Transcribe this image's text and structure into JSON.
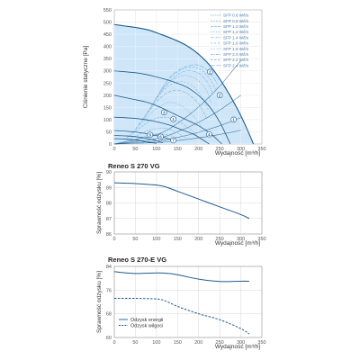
{
  "chart_data": [
    {
      "type": "line",
      "title": "",
      "xlabel": "Wydajność [m³/h]",
      "ylabel": "Ciśnienie statyczne [Pa]",
      "xlim": [
        0,
        350
      ],
      "ylim": [
        0,
        550
      ],
      "xticks": [
        0,
        50,
        100,
        150,
        200,
        250,
        300,
        350
      ],
      "yticks": [
        0,
        50,
        100,
        150,
        200,
        250,
        300,
        350,
        400,
        450,
        500,
        550
      ],
      "grid": true,
      "legend_position": "top-right",
      "max_envelope": {
        "x": [
          0,
          20,
          50,
          80,
          110,
          140,
          170,
          200,
          230,
          260,
          290,
          310,
          330
        ],
        "y": [
          490,
          485,
          478,
          468,
          450,
          430,
          405,
          368,
          315,
          240,
          150,
          80,
          0
        ]
      },
      "fan_curves": [
        {
          "marker": "2",
          "x": [
            0,
            60,
            100,
            140,
            180,
            220,
            250,
            275
          ],
          "y": [
            300,
            290,
            275,
            255,
            225,
            165,
            90,
            0
          ]
        },
        {
          "marker": "3",
          "x": [
            0,
            40,
            80,
            110,
            140,
            170,
            200,
            230,
            255
          ],
          "y": [
            200,
            185,
            170,
            150,
            125,
            100,
            75,
            40,
            0
          ]
        },
        {
          "marker": "4",
          "x": [
            0,
            50,
            90,
            130,
            160,
            190,
            225
          ],
          "y": [
            110,
            105,
            95,
            78,
            58,
            38,
            0
          ]
        },
        {
          "marker": "5",
          "x": [
            0,
            30,
            60,
            90,
            120,
            145
          ],
          "y": [
            55,
            52,
            47,
            38,
            26,
            10
          ]
        },
        {
          "marker": "6",
          "x": [
            0,
            30,
            60,
            90,
            115
          ],
          "y": [
            35,
            33,
            28,
            18,
            5
          ]
        },
        {
          "marker": "7",
          "x": [
            0,
            25,
            50,
            75,
            100
          ],
          "y": [
            22,
            20,
            16,
            9,
            3
          ]
        }
      ],
      "sfp_lines": [
        {
          "name": "SFP 0.6 W/l/s",
          "x": [
            30,
            60,
            90,
            120,
            150
          ],
          "y": [
            10,
            25,
            40,
            40,
            25
          ]
        },
        {
          "name": "SFP 0.8 W/l/s",
          "x": [
            30,
            60,
            90,
            120,
            150,
            170
          ],
          "y": [
            15,
            40,
            60,
            65,
            45,
            25
          ]
        },
        {
          "name": "SFP 1.0 W/l/s",
          "x": [
            30,
            60,
            90,
            120,
            150,
            180,
            200
          ],
          "y": [
            25,
            65,
            100,
            110,
            95,
            60,
            30
          ]
        },
        {
          "name": "SFP 1.2 W/l/s",
          "x": [
            40,
            70,
            100,
            130,
            160,
            190,
            210
          ],
          "y": [
            40,
            95,
            145,
            170,
            155,
            110,
            60
          ]
        },
        {
          "name": "SFP 1.4 W/l/s",
          "x": [
            50,
            80,
            110,
            140,
            170,
            200,
            220
          ],
          "y": [
            60,
            130,
            190,
            220,
            210,
            165,
            100
          ]
        },
        {
          "name": "SFP 1.6 W/l/s",
          "x": [
            60,
            90,
            120,
            150,
            180,
            205,
            225
          ],
          "y": [
            80,
            160,
            225,
            255,
            245,
            200,
            135
          ]
        },
        {
          "name": "SFP 1.8 W/l/s",
          "x": [
            70,
            100,
            130,
            160,
            190,
            215,
            230
          ],
          "y": [
            100,
            185,
            250,
            280,
            270,
            230,
            170
          ]
        },
        {
          "name": "SFP 2.0 W/l/s",
          "x": [
            80,
            110,
            140,
            170,
            200,
            220,
            235
          ],
          "y": [
            130,
            215,
            270,
            300,
            290,
            255,
            200
          ]
        },
        {
          "name": "SFP 2.2 W/l/s",
          "x": [
            90,
            120,
            150,
            180,
            205,
            225,
            240
          ],
          "y": [
            160,
            245,
            295,
            315,
            305,
            270,
            225
          ]
        },
        {
          "name": "SFP 2.4 W/l/s",
          "x": [
            100,
            130,
            160,
            190,
            210,
            230,
            245
          ],
          "y": [
            190,
            270,
            310,
            325,
            315,
            285,
            245
          ]
        }
      ],
      "system_curves": [
        {
          "x": [
            0,
            100,
            150,
            200,
            250,
            300
          ],
          "y": [
            0,
            38,
            85,
            152,
            238,
            342
          ]
        },
        {
          "x": [
            0,
            100,
            150,
            200,
            250,
            300
          ],
          "y": [
            0,
            22,
            50,
            89,
            139,
            200
          ]
        },
        {
          "x": [
            0,
            100,
            150,
            200,
            250,
            300
          ],
          "y": [
            0,
            12,
            27,
            48,
            75,
            108
          ]
        },
        {
          "x": [
            0,
            100,
            150,
            200,
            250,
            300
          ],
          "y": [
            0,
            6,
            14,
            25,
            39,
            56
          ]
        }
      ],
      "point_markers": [
        {
          "label": "1",
          "x": 283,
          "y": 100
        },
        {
          "label": "2",
          "x": 227,
          "y": 296
        },
        {
          "label": "2",
          "x": 250,
          "y": 200
        },
        {
          "label": "3",
          "x": 118,
          "y": 130
        },
        {
          "label": "1",
          "x": 140,
          "y": 102
        },
        {
          "label": "4",
          "x": 225,
          "y": 40
        },
        {
          "label": "5",
          "x": 85,
          "y": 38
        },
        {
          "label": "6",
          "x": 110,
          "y": 30
        },
        {
          "label": "7",
          "x": 140,
          "y": 15
        }
      ]
    },
    {
      "type": "line",
      "title": "Reneo S 270 VG",
      "xlabel": "Wydajność [m³/h]",
      "ylabel": "Sprawność odzysku [%]",
      "xlim": [
        0,
        350
      ],
      "ylim": [
        86,
        90
      ],
      "xticks": [
        0,
        50,
        100,
        150,
        200,
        250,
        300,
        350
      ],
      "yticks": [
        86,
        87,
        88,
        89,
        90
      ],
      "grid": true,
      "series": [
        {
          "x": [
            0,
            50,
            100,
            120,
            150,
            200,
            250,
            300,
            320
          ],
          "y": [
            89.3,
            89.25,
            89.15,
            89.05,
            88.75,
            88.25,
            87.75,
            87.25,
            87.0
          ]
        }
      ]
    },
    {
      "type": "line",
      "title": "Reneo S 270-E VG",
      "xlabel": "Wydajność [m³/h]",
      "ylabel": "Sprawność odzysku [%]",
      "xlim": [
        0,
        350
      ],
      "ylim": [
        60,
        84
      ],
      "xticks": [
        0,
        50,
        100,
        150,
        200,
        250,
        300,
        350
      ],
      "yticks": [
        60,
        68,
        76,
        84
      ],
      "grid": true,
      "legend_position": "bottom-left",
      "series": [
        {
          "name": "Odzysk energii",
          "style": "solid",
          "x": [
            0,
            50,
            100,
            130,
            160,
            200,
            250,
            300,
            320
          ],
          "y": [
            82.2,
            81.6,
            81.8,
            81.6,
            80.9,
            79.7,
            78.9,
            79.0,
            79.0
          ]
        },
        {
          "name": "Odzysk wilgoci",
          "style": "dashed",
          "x": [
            0,
            50,
            100,
            120,
            150,
            200,
            250,
            300,
            320
          ],
          "y": [
            73.2,
            73.2,
            73.0,
            72.4,
            70.5,
            68.0,
            66.0,
            63.0,
            61.2
          ]
        }
      ]
    }
  ],
  "colors": {
    "curve": "#1e5b8c",
    "light": "#7ab4de",
    "fill": "#cfe6f8",
    "grid": "#d7d7d7"
  }
}
